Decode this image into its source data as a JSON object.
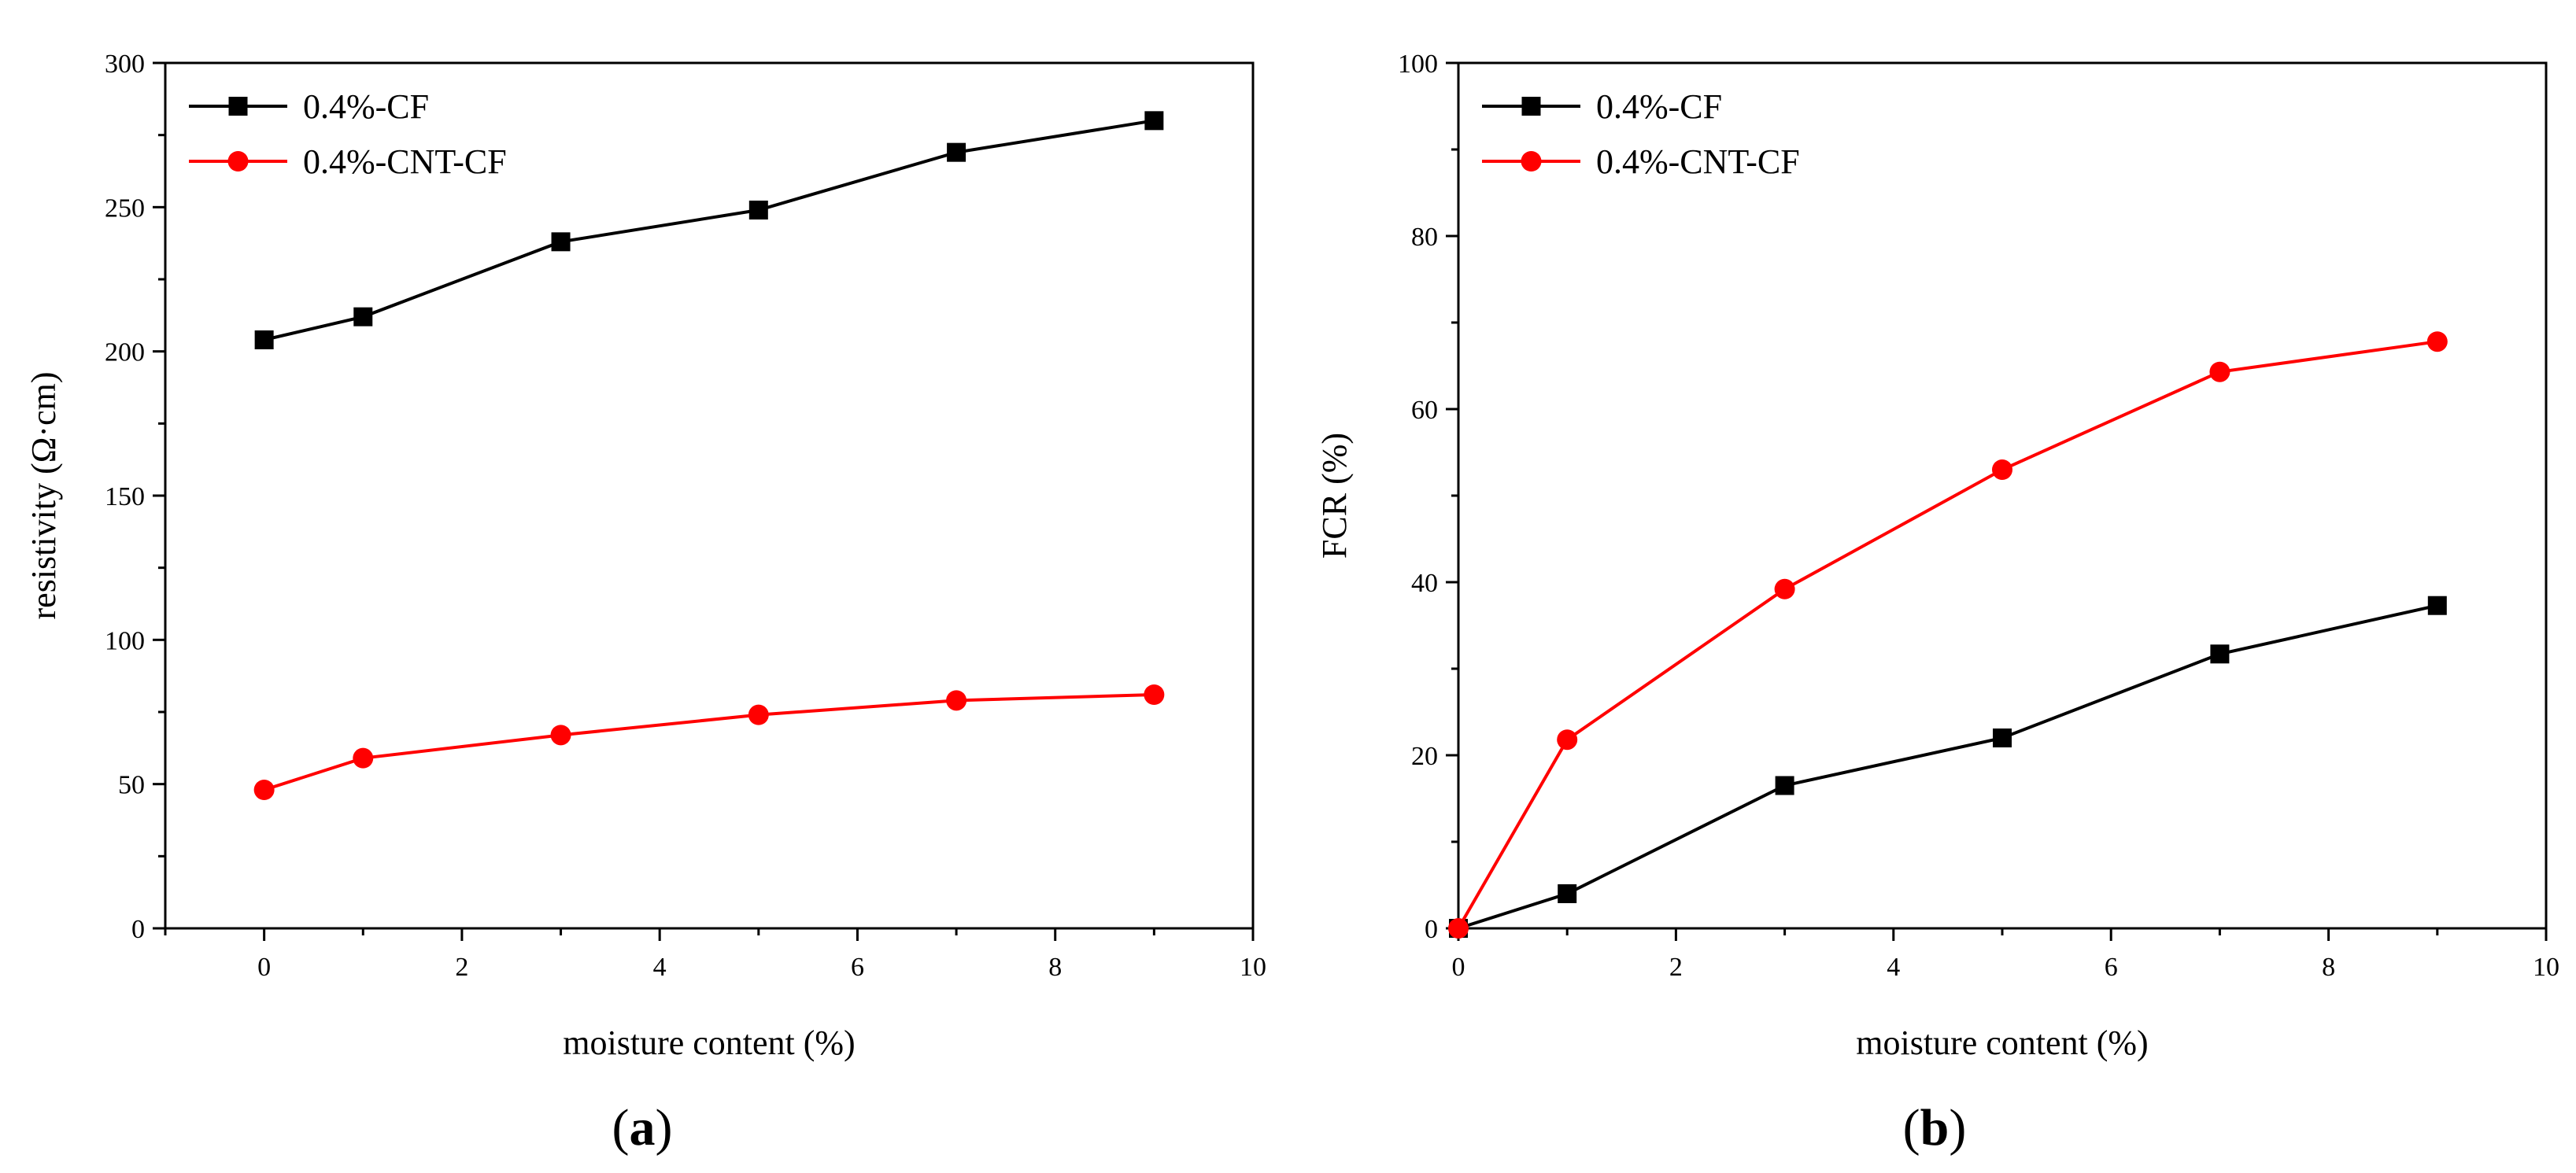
{
  "chart_data": [
    {
      "type": "line",
      "panel_label": "a",
      "title": "",
      "xlabel": "moisture content (%)",
      "ylabel": "resistivity (Ω·cm)",
      "xlim": [
        -1,
        10
      ],
      "ylim": [
        0,
        300
      ],
      "xticks": [
        0,
        2,
        4,
        6,
        8,
        10
      ],
      "yticks": [
        0,
        50,
        100,
        150,
        200,
        250,
        300
      ],
      "legend_position": "top-left",
      "series": [
        {
          "name": "0.4%-CF",
          "color": "#000000",
          "marker": "square",
          "x": [
            0,
            1,
            3,
            5,
            7,
            9
          ],
          "y": [
            204,
            212,
            238,
            249,
            269,
            280
          ]
        },
        {
          "name": "0.4%-CNT-CF",
          "color": "#ff0000",
          "marker": "circle",
          "x": [
            0,
            1,
            3,
            5,
            7,
            9
          ],
          "y": [
            48,
            59,
            67,
            74,
            79,
            81
          ]
        }
      ]
    },
    {
      "type": "line",
      "panel_label": "b",
      "title": "",
      "xlabel": "moisture content (%)",
      "ylabel": "FCR (%)",
      "xlim": [
        0,
        10
      ],
      "ylim": [
        0,
        100
      ],
      "xticks": [
        0,
        2,
        4,
        6,
        8,
        10
      ],
      "yticks": [
        0,
        20,
        40,
        60,
        80,
        100
      ],
      "legend_position": "top-left",
      "series": [
        {
          "name": "0.4%-CF",
          "color": "#000000",
          "marker": "square",
          "x": [
            0,
            1,
            3,
            5,
            7,
            9
          ],
          "y": [
            0,
            4,
            16.5,
            22,
            31.7,
            37.3
          ]
        },
        {
          "name": "0.4%-CNT-CF",
          "color": "#ff0000",
          "marker": "circle",
          "x": [
            0,
            1,
            3,
            5,
            7,
            9
          ],
          "y": [
            0,
            21.8,
            39.2,
            53,
            64.3,
            67.8
          ]
        }
      ]
    }
  ]
}
